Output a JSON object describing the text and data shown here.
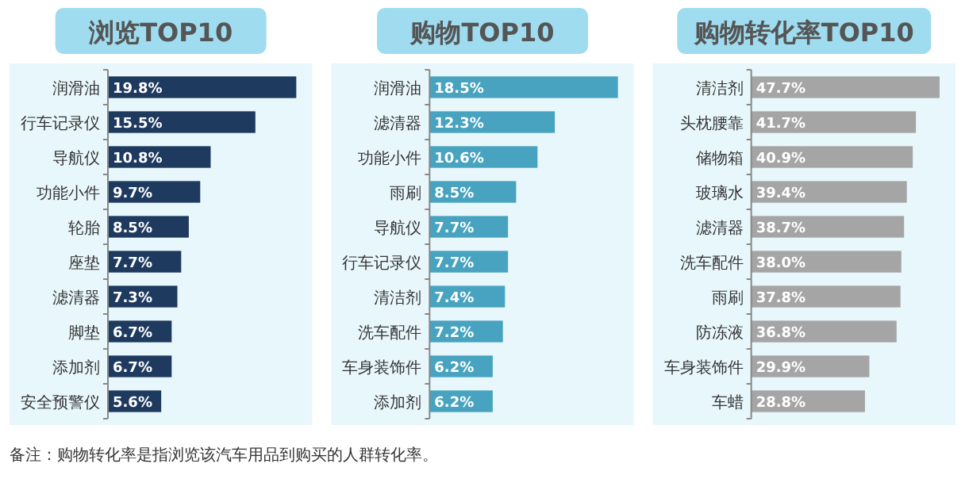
{
  "chart_data": [
    {
      "type": "bar",
      "orientation": "horizontal",
      "title": "浏览TOP10",
      "categories": [
        "润滑油",
        "行车记录仪",
        "导航仪",
        "功能小件",
        "轮胎",
        "座垫",
        "滤清器",
        "脚垫",
        "添加剂",
        "安全预警仪"
      ],
      "values": [
        19.8,
        15.5,
        10.8,
        9.7,
        8.5,
        7.7,
        7.3,
        6.7,
        6.7,
        5.6
      ],
      "value_labels": [
        "19.8%",
        "15.5%",
        "10.8%",
        "9.7%",
        "8.5%",
        "7.7%",
        "7.3%",
        "6.7%",
        "6.7%",
        "5.6%"
      ],
      "color": "#1e3a5f",
      "tick_labels": "x"
    },
    {
      "type": "bar",
      "orientation": "horizontal",
      "title": "购物TOP10",
      "categories": [
        "润滑油",
        "滤清器",
        "功能小件",
        "雨刷",
        "导航仪",
        "行车记录仪",
        "清洁剂",
        "洗车配件",
        "车身装饰件",
        "添加剂"
      ],
      "values": [
        18.5,
        12.3,
        10.6,
        8.5,
        7.7,
        7.7,
        7.4,
        7.2,
        6.2,
        6.2
      ],
      "value_labels": [
        "18.5%",
        "12.3%",
        "10.6%",
        "8.5%",
        "7.7%",
        "7.7%",
        "7.4%",
        "7.2%",
        "6.2%",
        "6.2%"
      ],
      "color": "#47a3bf",
      "tick_labels": "x"
    },
    {
      "type": "bar",
      "orientation": "horizontal",
      "title": "购物转化率TOP10",
      "categories": [
        "清洁剂",
        "头枕腰靠",
        "储物箱",
        "玻璃水",
        "滤清器",
        "洗车配件",
        "雨刷",
        "防冻液",
        "车身装饰件",
        "车蜡"
      ],
      "values": [
        47.7,
        41.7,
        40.9,
        39.4,
        38.7,
        38.0,
        37.8,
        36.8,
        29.9,
        28.8
      ],
      "value_labels": [
        "47.7%",
        "41.7%",
        "40.9%",
        "39.4%",
        "38.7%",
        "38.0%",
        "37.8%",
        "36.8%",
        "29.9%",
        "28.8%"
      ],
      "color": "#a5a5a5",
      "tick_labels": "x",
      "annotations": [
        "备注：购物转化率是指浏览该汽车用品到购买的人群转化率。"
      ]
    }
  ]
}
